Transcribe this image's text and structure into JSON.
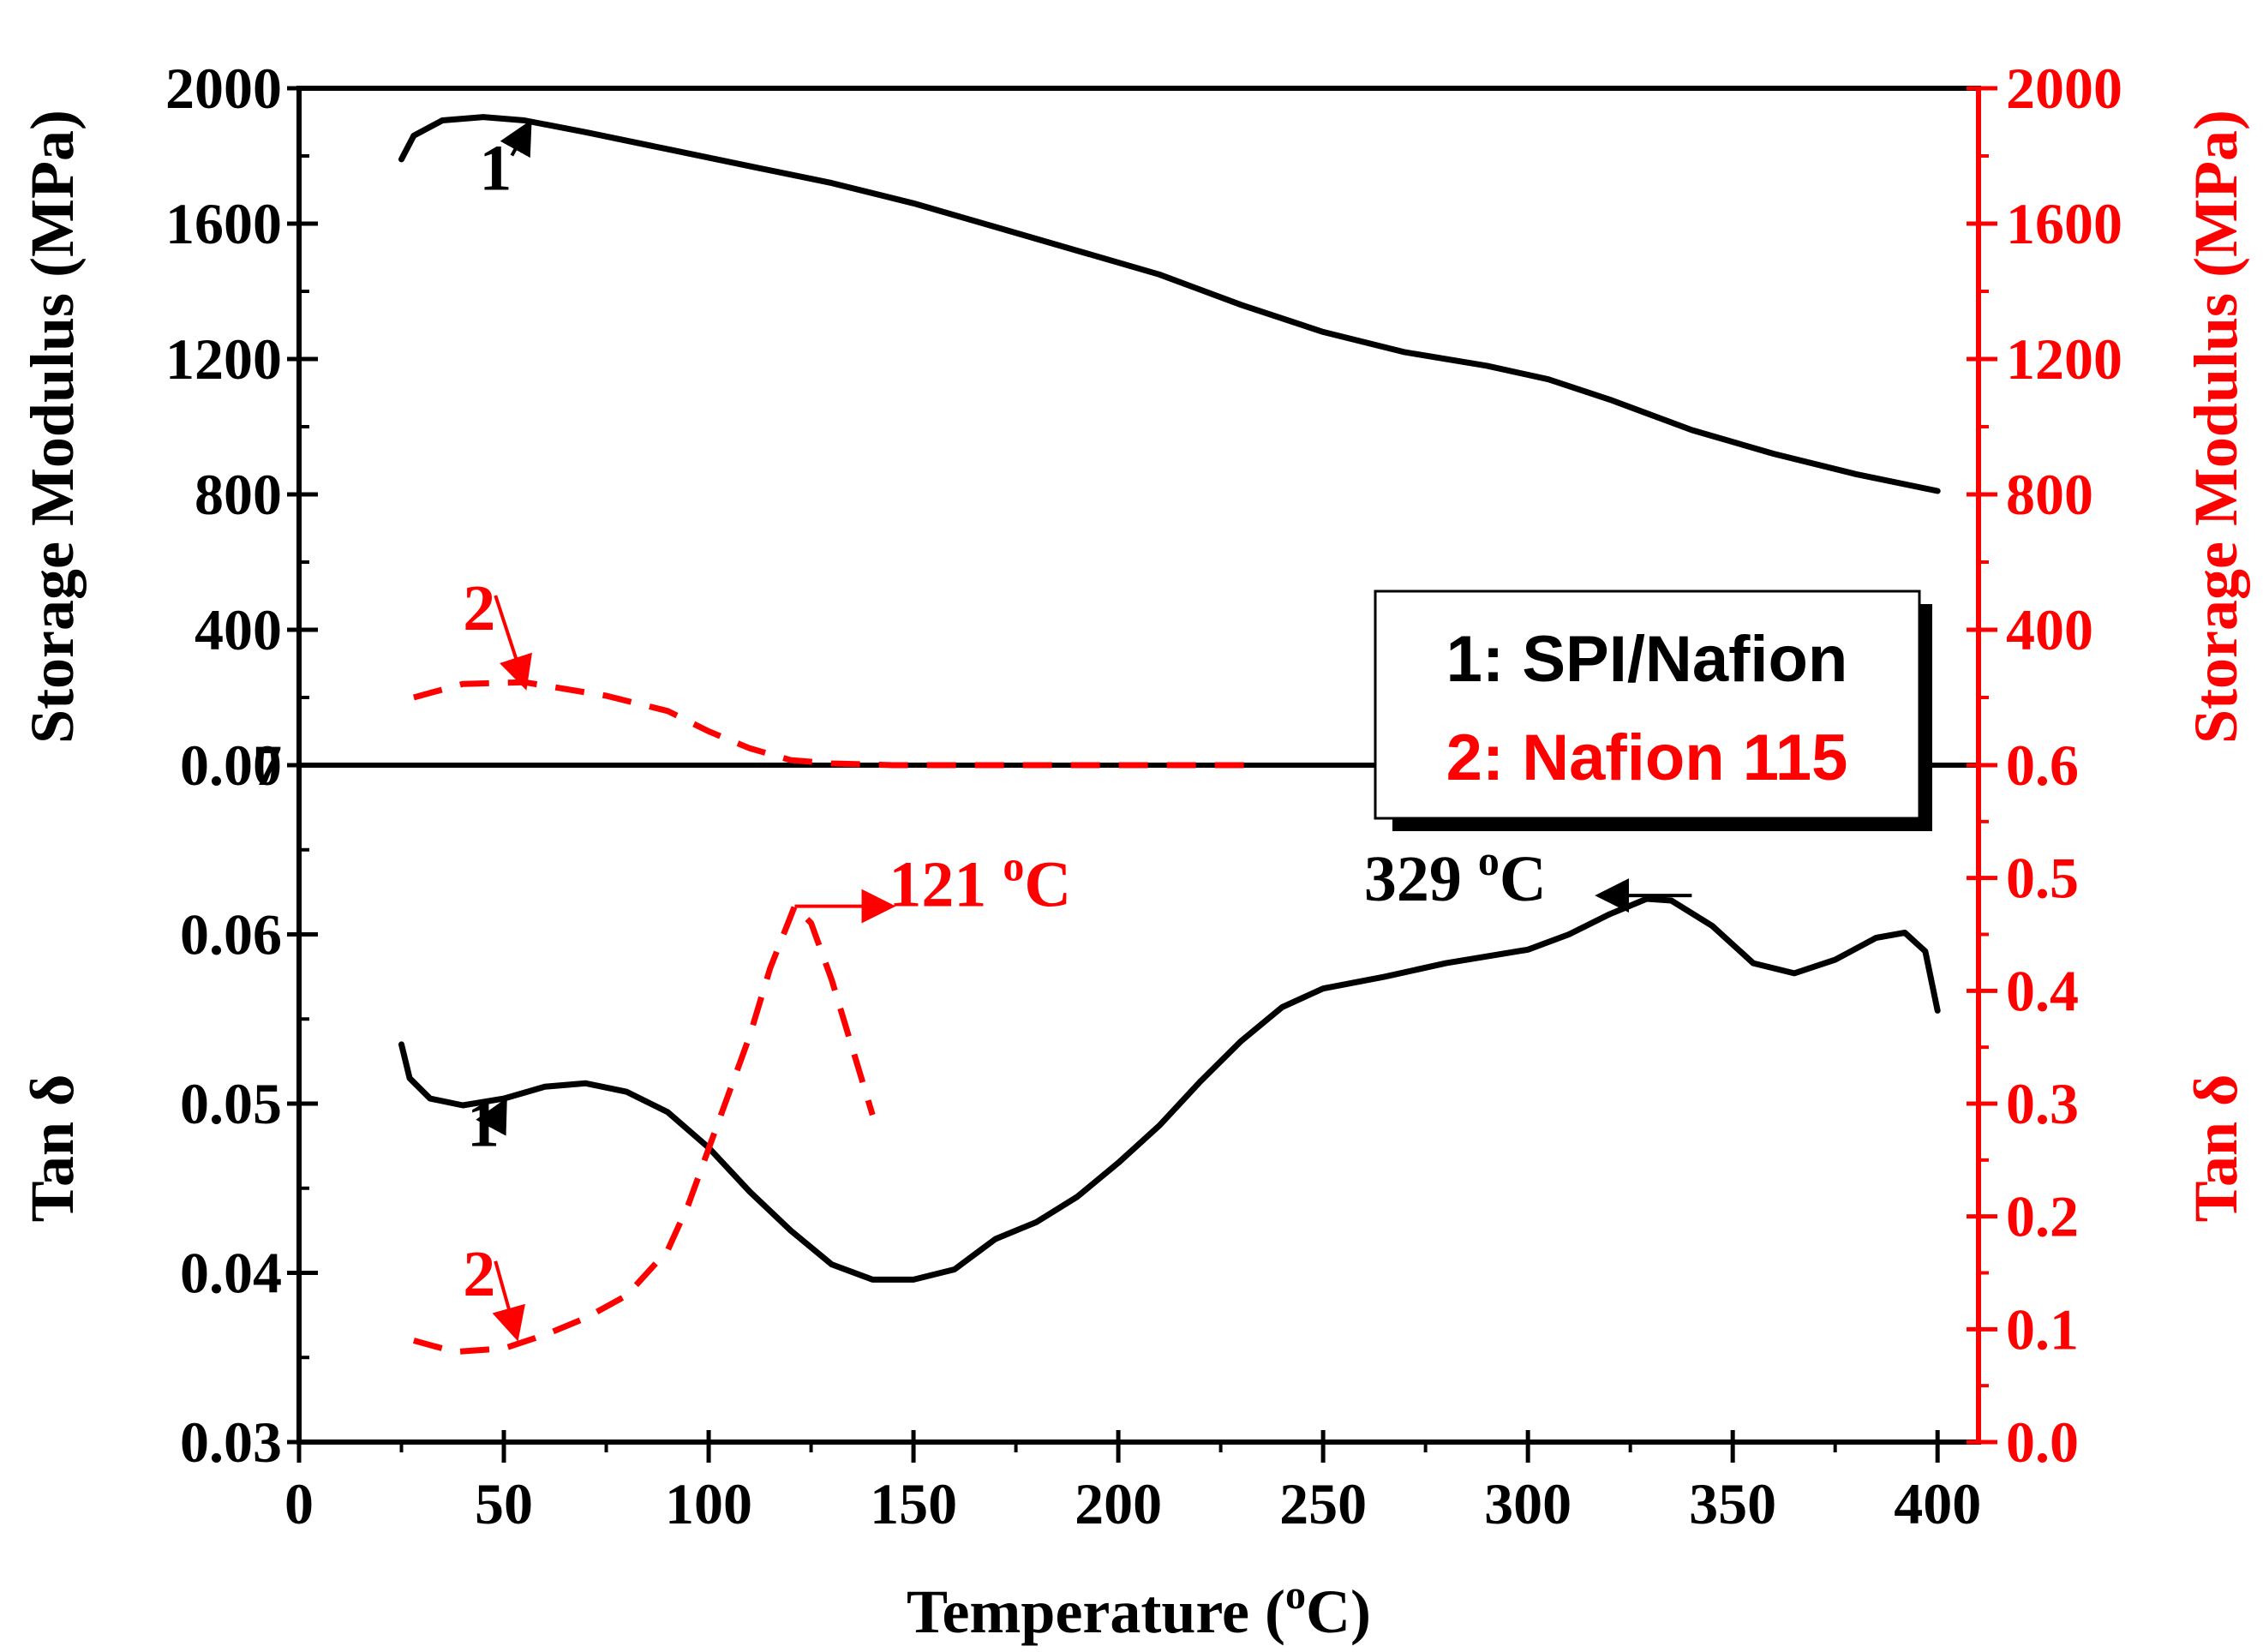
{
  "colors": {
    "black": "#000000",
    "red": "#ff0000"
  },
  "chart_data": [
    {
      "type": "line",
      "panel": "top",
      "xlabel": "Temperature (",
      "xlabel_sup": "o",
      "xlabel_end": "C)",
      "xlim": [
        0,
        410
      ],
      "xticks": [
        0,
        50,
        100,
        150,
        200,
        250,
        300,
        350,
        400
      ],
      "ylabel_left": "Storage Modulus (MPa)",
      "ylabel_right": "Storage Modulus (MPa)",
      "ylim_left": [
        0,
        2000
      ],
      "ylim_right": [
        0,
        2000
      ],
      "yticks_left": [
        0,
        400,
        800,
        1200,
        1600,
        2000
      ],
      "yticks_right": [
        0,
        400,
        800,
        1200,
        1600,
        2000
      ],
      "series": [
        {
          "name": "1: SPI/Nafion",
          "axis": "left",
          "style": "solid",
          "color": "#000000",
          "points": [
            [
              25,
              1790
            ],
            [
              28,
              1860
            ],
            [
              35,
              1905
            ],
            [
              45,
              1915
            ],
            [
              55,
              1905
            ],
            [
              70,
              1870
            ],
            [
              90,
              1820
            ],
            [
              110,
              1770
            ],
            [
              130,
              1720
            ],
            [
              150,
              1660
            ],
            [
              170,
              1590
            ],
            [
              190,
              1520
            ],
            [
              210,
              1450
            ],
            [
              230,
              1360
            ],
            [
              250,
              1280
            ],
            [
              270,
              1220
            ],
            [
              290,
              1180
            ],
            [
              305,
              1140
            ],
            [
              320,
              1080
            ],
            [
              340,
              990
            ],
            [
              360,
              920
            ],
            [
              380,
              860
            ],
            [
              400,
              810
            ]
          ]
        },
        {
          "name": "2: Nafion 115",
          "axis": "right",
          "style": "dashed",
          "color": "#ff0000",
          "points": [
            [
              28,
              200
            ],
            [
              40,
              240
            ],
            [
              55,
              245
            ],
            [
              75,
              205
            ],
            [
              90,
              160
            ],
            [
              100,
              100
            ],
            [
              110,
              50
            ],
            [
              120,
              15
            ],
            [
              130,
              5
            ],
            [
              145,
              0
            ],
            [
              170,
              0
            ],
            [
              200,
              0
            ],
            [
              235,
              0
            ]
          ]
        }
      ],
      "annotations": [
        {
          "text": "1",
          "color": "#000000",
          "x": 44,
          "y": 1700,
          "arrow_to": [
            56,
            1890
          ]
        },
        {
          "text": "2",
          "color": "#ff0000",
          "x": 40,
          "y": 400,
          "arrow_to": [
            55,
            240
          ]
        }
      ]
    },
    {
      "type": "line",
      "panel": "bottom",
      "xlabel": "Temperature (",
      "xlabel_sup": "o",
      "xlabel_end": "C)",
      "xlim": [
        0,
        410
      ],
      "xticks": [
        0,
        50,
        100,
        150,
        200,
        250,
        300,
        350,
        400
      ],
      "ylabel_left": "Tan δ",
      "ylabel_right": "Tan δ",
      "ylim_left": [
        0.03,
        0.07
      ],
      "ylim_right": [
        0.0,
        0.6
      ],
      "yticks_left": [
        "0.03",
        "0.04",
        "0.05",
        "0.06",
        "0.07"
      ],
      "yticks_right": [
        "0.0",
        "0.1",
        "0.2",
        "0.3",
        "0.4",
        "0.5",
        "0.6"
      ],
      "series": [
        {
          "name": "1: SPI/Nafion",
          "axis": "left",
          "style": "solid",
          "color": "#000000",
          "points": [
            [
              25,
              0.0535
            ],
            [
              27,
              0.0515
            ],
            [
              32,
              0.0503
            ],
            [
              40,
              0.0499
            ],
            [
              50,
              0.0503
            ],
            [
              60,
              0.051
            ],
            [
              70,
              0.0512
            ],
            [
              80,
              0.0507
            ],
            [
              90,
              0.0495
            ],
            [
              100,
              0.0474
            ],
            [
              110,
              0.0448
            ],
            [
              120,
              0.0425
            ],
            [
              130,
              0.0405
            ],
            [
              140,
              0.0396
            ],
            [
              150,
              0.0396
            ],
            [
              160,
              0.0402
            ],
            [
              170,
              0.042
            ],
            [
              180,
              0.043
            ],
            [
              190,
              0.0445
            ],
            [
              200,
              0.0465
            ],
            [
              210,
              0.0487
            ],
            [
              220,
              0.0513
            ],
            [
              230,
              0.0537
            ],
            [
              240,
              0.0557
            ],
            [
              250,
              0.0568
            ],
            [
              265,
              0.0575
            ],
            [
              280,
              0.0583
            ],
            [
              300,
              0.0591
            ],
            [
              310,
              0.06
            ],
            [
              320,
              0.0612
            ],
            [
              329,
              0.0621
            ],
            [
              335,
              0.062
            ],
            [
              345,
              0.0605
            ],
            [
              355,
              0.0583
            ],
            [
              365,
              0.0577
            ],
            [
              375,
              0.0585
            ],
            [
              385,
              0.0598
            ],
            [
              392,
              0.0601
            ],
            [
              397,
              0.059
            ],
            [
              400,
              0.0555
            ]
          ]
        },
        {
          "name": "2: Nafion 115",
          "axis": "right",
          "style": "dashed",
          "color": "#ff0000",
          "points": [
            [
              28,
              0.09
            ],
            [
              38,
              0.08
            ],
            [
              50,
              0.083
            ],
            [
              60,
              0.095
            ],
            [
              70,
              0.11
            ],
            [
              80,
              0.13
            ],
            [
              90,
              0.17
            ],
            [
              95,
              0.21
            ],
            [
              100,
              0.26
            ],
            [
              105,
              0.31
            ],
            [
              110,
              0.36
            ],
            [
              115,
              0.42
            ],
            [
              121,
              0.475
            ],
            [
              125,
              0.46
            ],
            [
              130,
              0.41
            ],
            [
              135,
              0.35
            ],
            [
              140,
              0.29
            ]
          ]
        }
      ],
      "annotations": [
        {
          "text": "1",
          "color": "#000000",
          "x": 41,
          "y": 0.0475,
          "arrow_to": [
            50,
            0.05
          ]
        },
        {
          "text": "2",
          "color": "#ff0000",
          "x": 40,
          "y": 0.13,
          "arrow_to": [
            53,
            0.095
          ]
        },
        {
          "text": "121 ",
          "sup": "o",
          "tail": "C",
          "color": "#ff0000",
          "x": 144,
          "y": 0.475,
          "arrow_from": [
            121,
            0.475
          ],
          "arrow_to": [
            144,
            0.475
          ]
        },
        {
          "text": "329 ",
          "sup": "o",
          "tail": "C",
          "color": "#000000",
          "x": 260,
          "y": 0.062,
          "arrow_from": [
            340,
            0.0623
          ],
          "arrow_to": [
            318,
            0.0623
          ]
        }
      ]
    }
  ],
  "legend": {
    "position": "middle-right",
    "entries": [
      {
        "label": "1: SPI/Nafion",
        "color": "#000000"
      },
      {
        "label": "2: Nafion 115",
        "color": "#ff0000"
      }
    ]
  }
}
